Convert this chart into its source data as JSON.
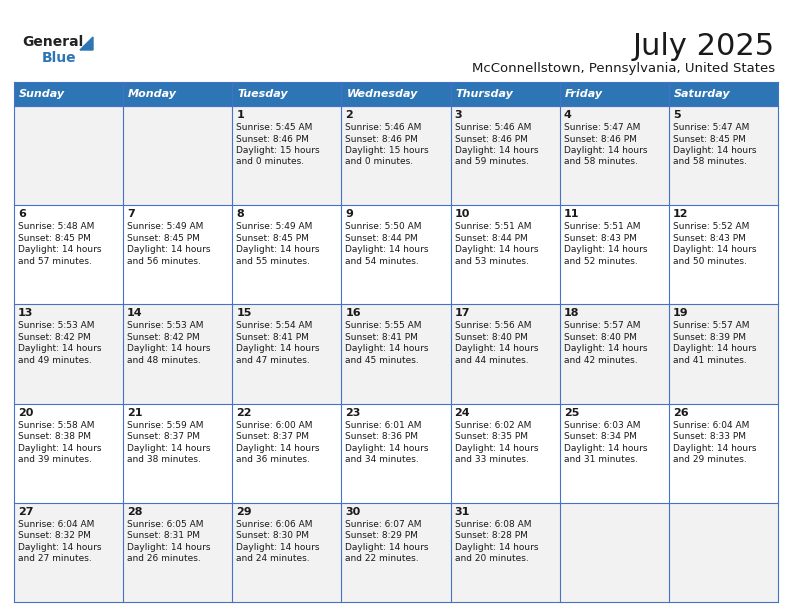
{
  "title": "July 2025",
  "subtitle": "McConnellstown, Pennsylvania, United States",
  "header_bg": "#2E75B6",
  "header_text_color": "#FFFFFF",
  "weekdays": [
    "Sunday",
    "Monday",
    "Tuesday",
    "Wednesday",
    "Thursday",
    "Friday",
    "Saturday"
  ],
  "bg_color": "#FFFFFF",
  "row_bg_odd": "#F2F2F2",
  "row_bg_even": "#FFFFFF",
  "cell_border_color": "#4472C4",
  "title_color": "#1a1a1a",
  "subtitle_color": "#1a1a1a",
  "text_color": "#1a1a1a",
  "logo_color": "#2E75B6",
  "calendar": [
    [
      {
        "day": "",
        "sunrise": "",
        "sunset": "",
        "daylight": ""
      },
      {
        "day": "",
        "sunrise": "",
        "sunset": "",
        "daylight": ""
      },
      {
        "day": "1",
        "sunrise": "5:45 AM",
        "sunset": "8:46 PM",
        "daylight": "15 hours\nand 0 minutes."
      },
      {
        "day": "2",
        "sunrise": "5:46 AM",
        "sunset": "8:46 PM",
        "daylight": "15 hours\nand 0 minutes."
      },
      {
        "day": "3",
        "sunrise": "5:46 AM",
        "sunset": "8:46 PM",
        "daylight": "14 hours\nand 59 minutes."
      },
      {
        "day": "4",
        "sunrise": "5:47 AM",
        "sunset": "8:46 PM",
        "daylight": "14 hours\nand 58 minutes."
      },
      {
        "day": "5",
        "sunrise": "5:47 AM",
        "sunset": "8:45 PM",
        "daylight": "14 hours\nand 58 minutes."
      }
    ],
    [
      {
        "day": "6",
        "sunrise": "5:48 AM",
        "sunset": "8:45 PM",
        "daylight": "14 hours\nand 57 minutes."
      },
      {
        "day": "7",
        "sunrise": "5:49 AM",
        "sunset": "8:45 PM",
        "daylight": "14 hours\nand 56 minutes."
      },
      {
        "day": "8",
        "sunrise": "5:49 AM",
        "sunset": "8:45 PM",
        "daylight": "14 hours\nand 55 minutes."
      },
      {
        "day": "9",
        "sunrise": "5:50 AM",
        "sunset": "8:44 PM",
        "daylight": "14 hours\nand 54 minutes."
      },
      {
        "day": "10",
        "sunrise": "5:51 AM",
        "sunset": "8:44 PM",
        "daylight": "14 hours\nand 53 minutes."
      },
      {
        "day": "11",
        "sunrise": "5:51 AM",
        "sunset": "8:43 PM",
        "daylight": "14 hours\nand 52 minutes."
      },
      {
        "day": "12",
        "sunrise": "5:52 AM",
        "sunset": "8:43 PM",
        "daylight": "14 hours\nand 50 minutes."
      }
    ],
    [
      {
        "day": "13",
        "sunrise": "5:53 AM",
        "sunset": "8:42 PM",
        "daylight": "14 hours\nand 49 minutes."
      },
      {
        "day": "14",
        "sunrise": "5:53 AM",
        "sunset": "8:42 PM",
        "daylight": "14 hours\nand 48 minutes."
      },
      {
        "day": "15",
        "sunrise": "5:54 AM",
        "sunset": "8:41 PM",
        "daylight": "14 hours\nand 47 minutes."
      },
      {
        "day": "16",
        "sunrise": "5:55 AM",
        "sunset": "8:41 PM",
        "daylight": "14 hours\nand 45 minutes."
      },
      {
        "day": "17",
        "sunrise": "5:56 AM",
        "sunset": "8:40 PM",
        "daylight": "14 hours\nand 44 minutes."
      },
      {
        "day": "18",
        "sunrise": "5:57 AM",
        "sunset": "8:40 PM",
        "daylight": "14 hours\nand 42 minutes."
      },
      {
        "day": "19",
        "sunrise": "5:57 AM",
        "sunset": "8:39 PM",
        "daylight": "14 hours\nand 41 minutes."
      }
    ],
    [
      {
        "day": "20",
        "sunrise": "5:58 AM",
        "sunset": "8:38 PM",
        "daylight": "14 hours\nand 39 minutes."
      },
      {
        "day": "21",
        "sunrise": "5:59 AM",
        "sunset": "8:37 PM",
        "daylight": "14 hours\nand 38 minutes."
      },
      {
        "day": "22",
        "sunrise": "6:00 AM",
        "sunset": "8:37 PM",
        "daylight": "14 hours\nand 36 minutes."
      },
      {
        "day": "23",
        "sunrise": "6:01 AM",
        "sunset": "8:36 PM",
        "daylight": "14 hours\nand 34 minutes."
      },
      {
        "day": "24",
        "sunrise": "6:02 AM",
        "sunset": "8:35 PM",
        "daylight": "14 hours\nand 33 minutes."
      },
      {
        "day": "25",
        "sunrise": "6:03 AM",
        "sunset": "8:34 PM",
        "daylight": "14 hours\nand 31 minutes."
      },
      {
        "day": "26",
        "sunrise": "6:04 AM",
        "sunset": "8:33 PM",
        "daylight": "14 hours\nand 29 minutes."
      }
    ],
    [
      {
        "day": "27",
        "sunrise": "6:04 AM",
        "sunset": "8:32 PM",
        "daylight": "14 hours\nand 27 minutes."
      },
      {
        "day": "28",
        "sunrise": "6:05 AM",
        "sunset": "8:31 PM",
        "daylight": "14 hours\nand 26 minutes."
      },
      {
        "day": "29",
        "sunrise": "6:06 AM",
        "sunset": "8:30 PM",
        "daylight": "14 hours\nand 24 minutes."
      },
      {
        "day": "30",
        "sunrise": "6:07 AM",
        "sunset": "8:29 PM",
        "daylight": "14 hours\nand 22 minutes."
      },
      {
        "day": "31",
        "sunrise": "6:08 AM",
        "sunset": "8:28 PM",
        "daylight": "14 hours\nand 20 minutes."
      },
      {
        "day": "",
        "sunrise": "",
        "sunset": "",
        "daylight": ""
      },
      {
        "day": "",
        "sunrise": "",
        "sunset": "",
        "daylight": ""
      }
    ]
  ]
}
